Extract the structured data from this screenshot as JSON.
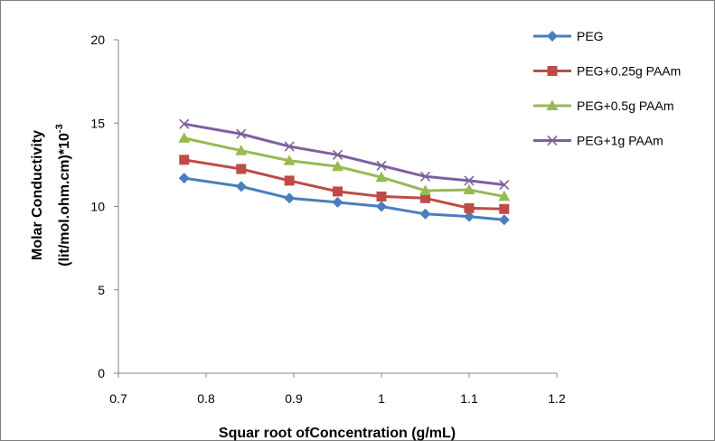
{
  "chart_data": {
    "type": "line",
    "title": "",
    "xlabel": "Squar root ofConcentration (g/mL)",
    "ylabel": "Molar Conductivity",
    "ylabel_line2": "(lit/mol.ohm.cm)",
    "ylabel_unit": "*10",
    "ylabel_exponent": "-3",
    "xlim": [
      0.7,
      1.2
    ],
    "ylim": [
      0,
      20
    ],
    "xticks": [
      "0.7",
      "0.8",
      "0.9",
      "1",
      "1.1",
      "1.2"
    ],
    "yticks": [
      "0",
      "5",
      "10",
      "15",
      "20"
    ],
    "grid": false,
    "legend_position": "right",
    "x": [
      0.775,
      0.84,
      0.895,
      0.95,
      1.0,
      1.05,
      1.1,
      1.14
    ],
    "series": [
      {
        "name": "PEG",
        "color": "#4a7ebb",
        "marker": "diamond",
        "values": [
          11.7,
          11.2,
          10.5,
          10.25,
          10.0,
          9.55,
          9.4,
          9.2
        ]
      },
      {
        "name": "PEG+0.25g PAAm",
        "color": "#be4b48",
        "marker": "square",
        "values": [
          12.8,
          12.25,
          11.55,
          10.9,
          10.6,
          10.5,
          9.9,
          9.85
        ]
      },
      {
        "name": "PEG+0.5g PAAm",
        "color": "#98b954",
        "marker": "triangle",
        "values": [
          14.1,
          13.35,
          12.75,
          12.4,
          11.75,
          10.95,
          11.0,
          10.6
        ]
      },
      {
        "name": "PEG+1g PAAm",
        "color": "#7d60a0",
        "marker": "x",
        "values": [
          14.95,
          14.35,
          13.6,
          13.1,
          12.45,
          11.8,
          11.55,
          11.3
        ]
      }
    ]
  }
}
